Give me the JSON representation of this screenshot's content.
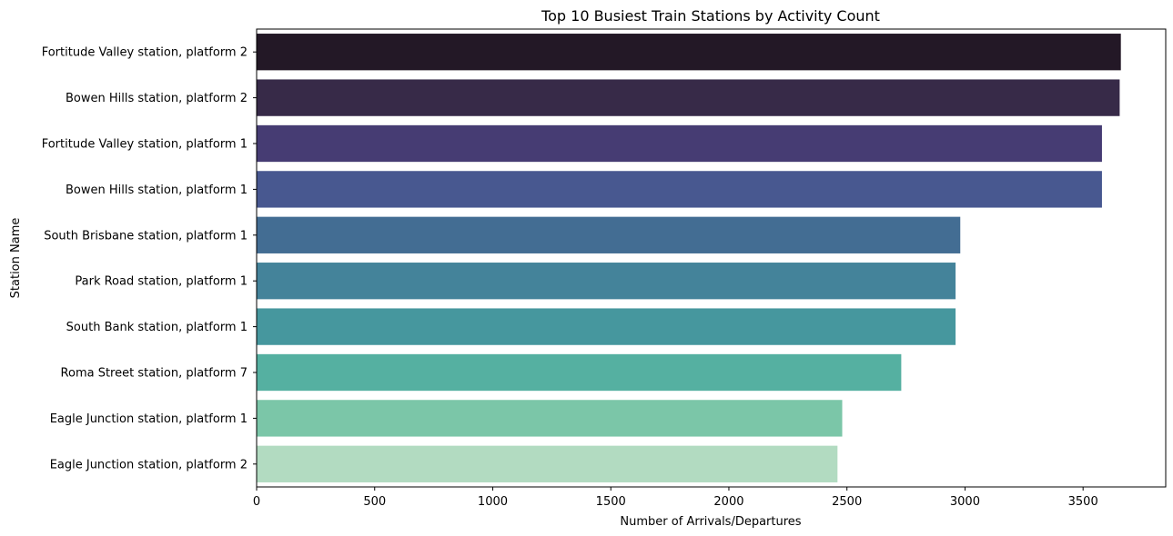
{
  "chart_data": {
    "type": "bar",
    "orientation": "horizontal",
    "title": "Top 10 Busiest Train Stations by Activity Count",
    "xlabel": "Number of Arrivals/Departures",
    "ylabel": "Station Name",
    "xlim": [
      0,
      3850
    ],
    "xticks": [
      0,
      500,
      1000,
      1500,
      2000,
      2500,
      3000,
      3500
    ],
    "grid": false,
    "legend": "none",
    "categories": [
      "Fortitude Valley station, platform 2",
      "Bowen Hills station, platform 2",
      "Fortitude Valley station, platform 1",
      "Bowen Hills station, platform 1",
      "South Brisbane station, platform 1",
      "Park Road station, platform 1",
      "South Bank station, platform 1",
      "Roma Street station, platform 7",
      "Eagle Junction station, platform 1",
      "Eagle Junction station, platform 2"
    ],
    "values": [
      3660,
      3655,
      3580,
      3580,
      2980,
      2960,
      2960,
      2730,
      2480,
      2460
    ],
    "colors": [
      "#231826",
      "#372a48",
      "#463c73",
      "#485890",
      "#436d93",
      "#44839a",
      "#46979e",
      "#55b0a1",
      "#7bc6a8",
      "#b2dbc1"
    ]
  }
}
